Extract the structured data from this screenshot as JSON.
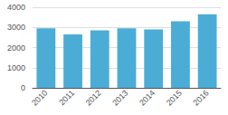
{
  "chart_data": {
    "type": "bar",
    "categories": [
      "2010",
      "2011",
      "2012",
      "2013",
      "2014",
      "2015",
      "2016"
    ],
    "values": [
      2950,
      2650,
      2850,
      2950,
      2900,
      3300,
      3650
    ],
    "color": "#4BACD6",
    "ylim": [
      0,
      4000
    ],
    "yticks": [
      0,
      1000,
      2000,
      3000,
      4000
    ],
    "grid": true
  }
}
